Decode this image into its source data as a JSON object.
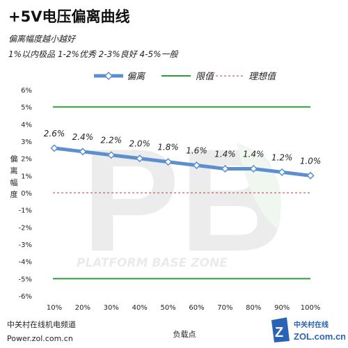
{
  "title": "+5V电压偏离曲线",
  "subtitle1": "偏离幅度越小越好",
  "subtitle2": "1%以内极品 1-2%优秀  2-3%良好 4-5%一般",
  "footer": {
    "line1": "中关村在线机电频道",
    "line2": "Power.zol.com.cn"
  },
  "watermark": {
    "text": "PLATFORM BASE ZONE",
    "logo_letters": "PB"
  },
  "logo": {
    "cn": "中关村在线",
    "en": "ZOL.com.cn"
  },
  "colors": {
    "series": "#5b8fd0",
    "limit": "#2e9b3c",
    "ideal": "#c0392b",
    "grid": "#cccccc"
  },
  "chart_data": {
    "type": "line",
    "categories": [
      "10%",
      "20%",
      "30%",
      "40%",
      "50%",
      "60%",
      "70%",
      "80%",
      "90%",
      "100%"
    ],
    "series": [
      {
        "name": "偏离",
        "values": [
          2.6,
          2.4,
          2.2,
          2.0,
          1.8,
          1.6,
          1.4,
          1.4,
          1.2,
          1.0
        ],
        "labels": [
          "2.6%",
          "2.4%",
          "2.2%",
          "2.0%",
          "1.8%",
          "1.6%",
          "1.4%",
          "1.4%",
          "1.2%",
          "1.0%"
        ]
      },
      {
        "name": "限值",
        "upper": 5,
        "lower": -5
      },
      {
        "name": "理想值",
        "value": 0
      }
    ],
    "yticks": [
      6,
      5,
      4,
      3,
      2,
      1,
      0,
      -1,
      -2,
      -3,
      -4,
      -5,
      -6
    ],
    "ytick_labels": [
      "6%",
      "5%",
      "4%",
      "3%",
      "2%",
      "1%",
      "0%",
      "-1%",
      "-2%",
      "-3%",
      "-4%",
      "-5%",
      "-6%"
    ],
    "ylim": [
      -6,
      6
    ],
    "ylabel": "偏离幅度",
    "xlabel": "负载点",
    "legend": "top"
  }
}
